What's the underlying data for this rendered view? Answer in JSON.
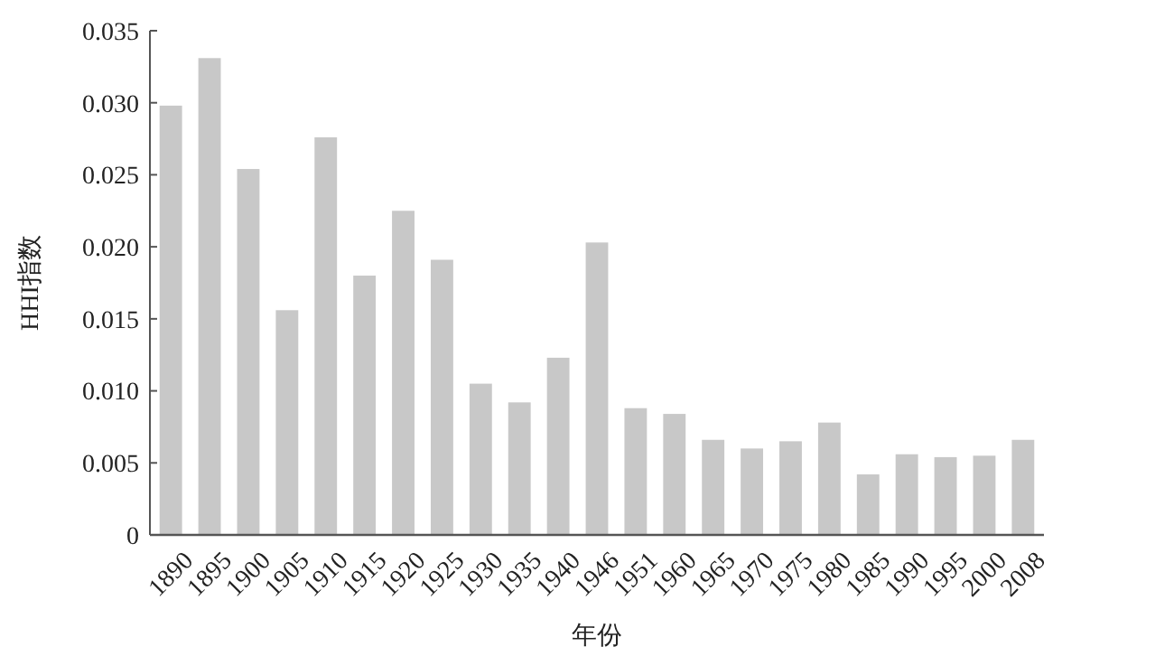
{
  "chart_data": {
    "type": "bar",
    "xlabel": "年份",
    "ylabel": "HHI指数",
    "categories": [
      "1890",
      "1895",
      "1900",
      "1905",
      "1910",
      "1915",
      "1920",
      "1925",
      "1930",
      "1935",
      "1940",
      "1946",
      "1951",
      "1960",
      "1965",
      "1970",
      "1975",
      "1980",
      "1985",
      "1990",
      "1995",
      "2000",
      "2008"
    ],
    "values": [
      0.0298,
      0.0331,
      0.0254,
      0.0156,
      0.0276,
      0.018,
      0.0225,
      0.0191,
      0.0105,
      0.0092,
      0.0123,
      0.0203,
      0.0088,
      0.0084,
      0.0066,
      0.006,
      0.0065,
      0.0078,
      0.0042,
      0.0056,
      0.0054,
      0.0055,
      0.0066
    ],
    "color": "#c8c8c8",
    "ylim": [
      0,
      0.035
    ],
    "yticks": [
      {
        "value": 0,
        "label": "0"
      },
      {
        "value": 0.005,
        "label": "0.005"
      },
      {
        "value": 0.01,
        "label": "0.010"
      },
      {
        "value": 0.015,
        "label": "0.015"
      },
      {
        "value": 0.02,
        "label": "0.020"
      },
      {
        "value": 0.025,
        "label": "0.025"
      },
      {
        "value": 0.03,
        "label": "0.030"
      },
      {
        "value": 0.035,
        "label": "0.035"
      }
    ],
    "grid": false
  }
}
